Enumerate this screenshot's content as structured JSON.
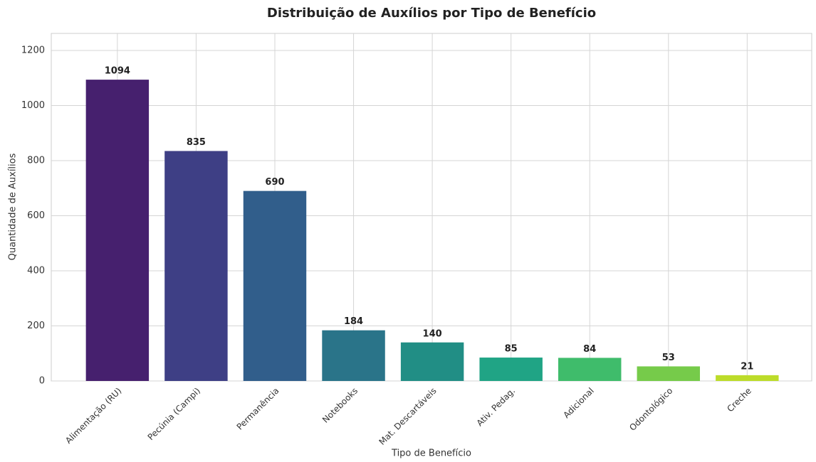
{
  "chart_data": {
    "type": "bar",
    "title": "Distribuição de Auxílios por Tipo de Benefício",
    "x_label": "Tipo de Benefício",
    "y_label": "Quantidade de Auxílios",
    "categories": [
      "Alimentação (RU)",
      "Pecúnia (Campi)",
      "Permanência",
      "Notebooks",
      "Mat. Descartáveis",
      "Ativ. Pedag.",
      "Adicional",
      "Odontológico",
      "Creche"
    ],
    "values": [
      1094,
      835,
      690,
      184,
      140,
      85,
      84,
      53,
      21
    ],
    "colors": [
      "#46206e",
      "#3e3f85",
      "#315e8b",
      "#2a7489",
      "#218e85",
      "#20a485",
      "#3fbc6b",
      "#76cb4a",
      "#bcdc2a"
    ],
    "ylim": [
      0,
      1262
    ],
    "yticks": [
      0,
      200,
      400,
      600,
      800,
      1000,
      1200
    ],
    "grid": true
  }
}
